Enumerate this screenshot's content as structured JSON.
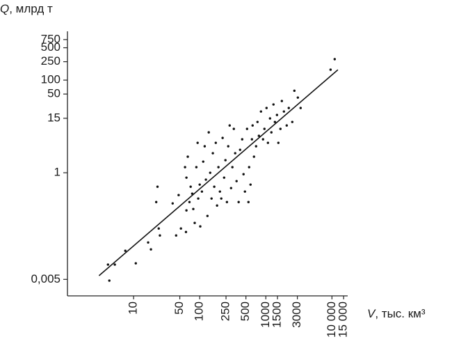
{
  "chart_data": {
    "type": "scatter",
    "y_label_symbol": "Q",
    "y_label_unit": ", млрд т",
    "x_label_symbol": "V",
    "x_label_unit": ", тыс. км³",
    "x_log": true,
    "y_log": true,
    "xlim": [
      1,
      20000
    ],
    "ylim": [
      0.0022,
      1130
    ],
    "xticks": [
      10,
      50,
      100,
      250,
      500,
      1000,
      1500,
      3000,
      {
        "value": 10000,
        "label": "10 000"
      },
      {
        "value": 15000,
        "label": "15 000"
      }
    ],
    "yticks": [
      {
        "value": 0.005,
        "label": "0,005"
      },
      1,
      15,
      50,
      100,
      250,
      500,
      750
    ],
    "color": "#111111",
    "x": [
      4.1,
      4.3,
      5.2,
      10.8,
      7.5,
      16.6,
      18.3,
      22,
      23,
      24,
      25,
      39,
      44,
      48,
      52,
      62,
      63,
      60,
      63,
      66,
      70,
      73,
      77,
      80,
      84,
      89,
      93,
      95,
      100,
      102,
      108,
      113,
      119,
      124,
      131,
      137,
      144,
      151,
      158,
      166,
      175,
      183,
      192,
      202,
      212,
      222,
      234,
      245,
      258,
      270,
      284,
      298,
      312,
      328,
      344,
      361,
      388,
      408,
      439,
      460,
      483,
      520,
      546,
      559,
      587,
      616,
      631,
      662,
      712,
      748,
      785,
      844,
      907,
      953,
      1025,
      1076,
      1157,
      1214,
      1305,
      1371,
      1474,
      1547,
      1663,
      1746,
      1877,
      2070,
      2223,
      2512,
      2703,
      3048,
      3360,
      9530,
      11000
    ],
    "values": [
      0.0104,
      0.0047,
      0.0104,
      0.0111,
      0.0207,
      0.0313,
      0.0222,
      0.233,
      0.5,
      0.0627,
      0.0443,
      0.218,
      0.0443,
      0.33,
      0.0627,
      0.0527,
      0.154,
      1.32,
      0.785,
      2.22,
      0.233,
      0.5,
      0.354,
      0.165,
      0.0826,
      1.32,
      4.43,
      0.278,
      0.555,
      0.0695,
      0.393,
      1.74,
      3.73,
      0.71,
      0.117,
      7.45,
      1,
      0.278,
      2.64,
      0.5,
      4.43,
      0.196,
      1.32,
      0.393,
      0.278,
      5.65,
      0.785,
      1.87,
      0.233,
      3.73,
      10.5,
      0.467,
      1.32,
      8.86,
      2.64,
      0.66,
      0.233,
      3.13,
      5.27,
      0.93,
      0.393,
      8.86,
      0.233,
      1.32,
      0.555,
      5.27,
      10.5,
      2.22,
      3.73,
      12.5,
      6.27,
      21,
      5.27,
      8.86,
      25,
      4.43,
      14.9,
      7.45,
      29.8,
      12.5,
      17.7,
      4.43,
      8.86,
      35.4,
      21,
      10.5,
      25,
      12.5,
      59,
      42,
      25,
      168,
      283
    ],
    "fit_line": {
      "x": [
        3,
        12300
      ],
      "values": [
        0.006,
        167
      ]
    }
  }
}
